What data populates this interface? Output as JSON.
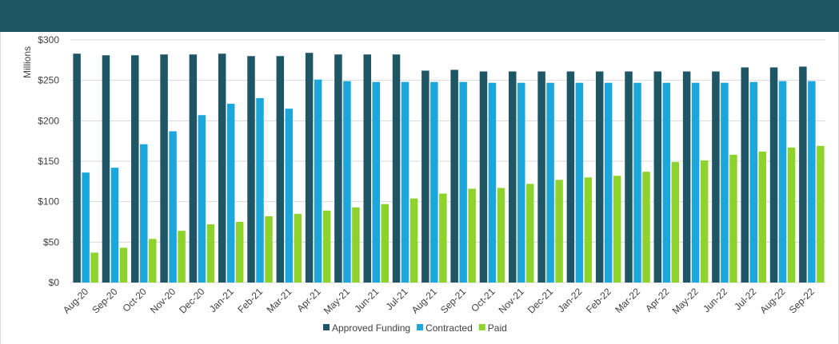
{
  "colors": {
    "header": "#1f5666",
    "approved": "#1f5666",
    "contracted": "#1ba6dc",
    "paid": "#8ed32c",
    "grid": "#d9d9d9",
    "axis_text": "#404040"
  },
  "chart_data": {
    "type": "bar",
    "title": "",
    "xlabel": "",
    "ylabel": "Millions",
    "ylim": [
      0,
      300
    ],
    "ytick_values": [
      0,
      50,
      100,
      150,
      200,
      250,
      300
    ],
    "ytick_labels": [
      "$0",
      "$50",
      "$100",
      "$150",
      "$200",
      "$250",
      "$300"
    ],
    "grid": true,
    "legend_position": "bottom",
    "categories": [
      "Aug-20",
      "Sep-20",
      "Oct-20",
      "Nov-20",
      "Dec-20",
      "Jan-21",
      "Feb-21",
      "Mar-21",
      "Apr-21",
      "May-21",
      "Jun-21",
      "Jul-21",
      "Aug-21",
      "Sep-21",
      "Oct-21",
      "Nov-21",
      "Dec-21",
      "Jan-22",
      "Feb-22",
      "Mar-22",
      "Apr-22",
      "May-22",
      "Jun-22",
      "Jul-22",
      "Aug-22",
      "Sep-22"
    ],
    "series": [
      {
        "name": "Approved Funding",
        "color": "#1f5666",
        "values": [
          283,
          281,
          281,
          282,
          282,
          283,
          280,
          280,
          284,
          282,
          282,
          282,
          262,
          263,
          261,
          261,
          261,
          261,
          261,
          261,
          261,
          261,
          261,
          266,
          266,
          267
        ]
      },
      {
        "name": "Contracted",
        "color": "#1ba6dc",
        "values": [
          136,
          142,
          171,
          187,
          207,
          221,
          228,
          215,
          251,
          249,
          248,
          248,
          248,
          248,
          247,
          247,
          247,
          247,
          247,
          247,
          247,
          247,
          247,
          248,
          249,
          249
        ]
      },
      {
        "name": "Paid",
        "color": "#8ed32c",
        "values": [
          37,
          43,
          54,
          64,
          72,
          75,
          82,
          85,
          89,
          93,
          97,
          104,
          110,
          116,
          117,
          122,
          127,
          130,
          132,
          137,
          149,
          151,
          158,
          162,
          167,
          169
        ]
      }
    ]
  }
}
